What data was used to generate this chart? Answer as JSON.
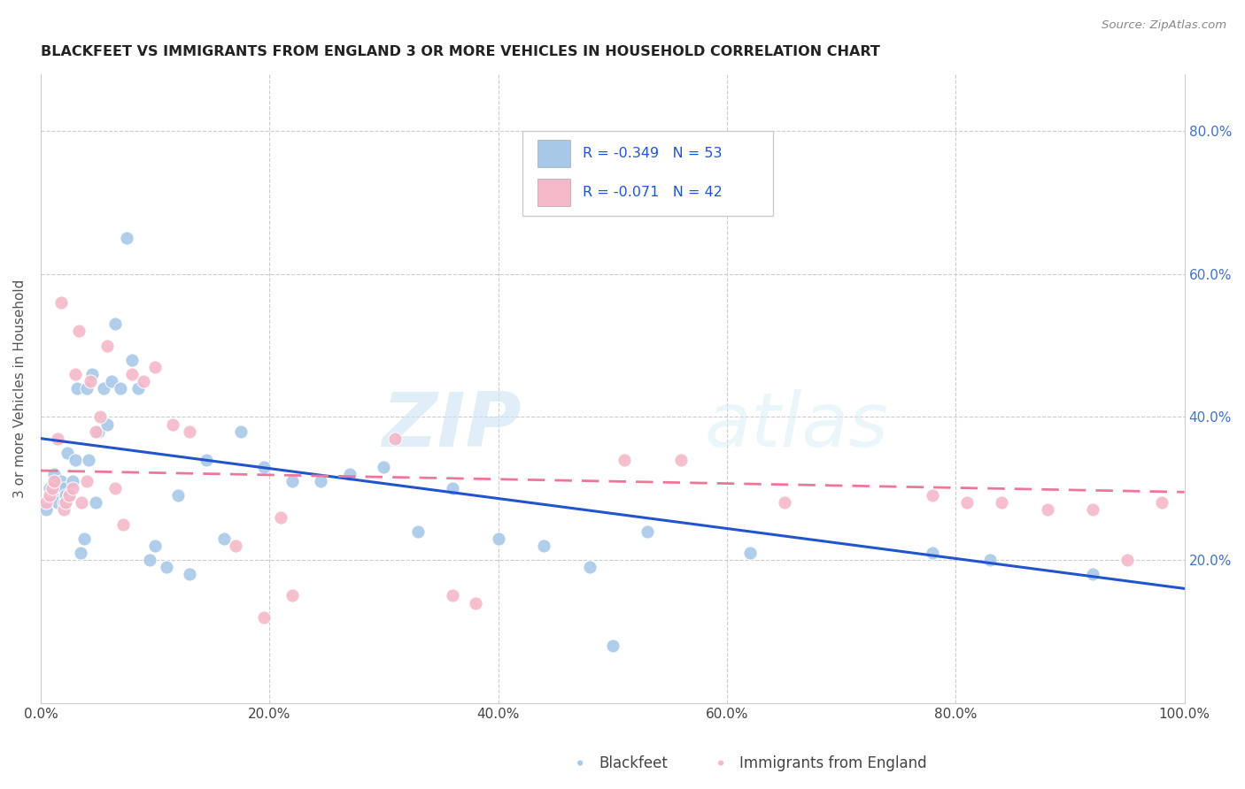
{
  "title": "BLACKFEET VS IMMIGRANTS FROM ENGLAND 3 OR MORE VEHICLES IN HOUSEHOLD CORRELATION CHART",
  "source": "Source: ZipAtlas.com",
  "ylabel": "3 or more Vehicles in Household",
  "legend_label1": "Blackfeet",
  "legend_label2": "Immigrants from England",
  "legend_r1": "R = -0.349",
  "legend_n1": "N = 53",
  "legend_r2": "R = -0.071",
  "legend_n2": "N = 42",
  "color_blue": "#a8c8e8",
  "color_pink": "#f4b8c8",
  "line_blue": "#2255cc",
  "line_pink": "#ee7799",
  "watermark_zip": "ZIP",
  "watermark_atlas": "atlas",
  "blue_x": [
    0.005,
    0.008,
    0.01,
    0.012,
    0.015,
    0.018,
    0.02,
    0.02,
    0.022,
    0.023,
    0.025,
    0.028,
    0.03,
    0.032,
    0.035,
    0.038,
    0.04,
    0.042,
    0.045,
    0.048,
    0.05,
    0.055,
    0.058,
    0.062,
    0.065,
    0.07,
    0.075,
    0.08,
    0.085,
    0.095,
    0.1,
    0.11,
    0.12,
    0.13,
    0.145,
    0.16,
    0.175,
    0.195,
    0.22,
    0.245,
    0.27,
    0.3,
    0.33,
    0.36,
    0.4,
    0.44,
    0.48,
    0.5,
    0.53,
    0.62,
    0.78,
    0.83,
    0.92
  ],
  "blue_y": [
    0.27,
    0.3,
    0.29,
    0.32,
    0.28,
    0.31,
    0.28,
    0.3,
    0.29,
    0.35,
    0.29,
    0.31,
    0.34,
    0.44,
    0.21,
    0.23,
    0.44,
    0.34,
    0.46,
    0.28,
    0.38,
    0.44,
    0.39,
    0.45,
    0.53,
    0.44,
    0.65,
    0.48,
    0.44,
    0.2,
    0.22,
    0.19,
    0.29,
    0.18,
    0.34,
    0.23,
    0.38,
    0.33,
    0.31,
    0.31,
    0.32,
    0.33,
    0.24,
    0.3,
    0.23,
    0.22,
    0.19,
    0.08,
    0.24,
    0.21,
    0.21,
    0.2,
    0.18
  ],
  "pink_x": [
    0.005,
    0.008,
    0.01,
    0.012,
    0.015,
    0.018,
    0.02,
    0.022,
    0.025,
    0.028,
    0.03,
    0.033,
    0.036,
    0.04,
    0.043,
    0.048,
    0.052,
    0.058,
    0.065,
    0.072,
    0.08,
    0.09,
    0.1,
    0.115,
    0.13,
    0.17,
    0.195,
    0.21,
    0.22,
    0.31,
    0.36,
    0.51,
    0.65,
    0.78,
    0.81,
    0.84,
    0.88,
    0.92,
    0.95,
    0.98,
    0.56,
    0.38
  ],
  "pink_y": [
    0.28,
    0.29,
    0.3,
    0.31,
    0.37,
    0.56,
    0.27,
    0.28,
    0.29,
    0.3,
    0.46,
    0.52,
    0.28,
    0.31,
    0.45,
    0.38,
    0.4,
    0.5,
    0.3,
    0.25,
    0.46,
    0.45,
    0.47,
    0.39,
    0.38,
    0.22,
    0.12,
    0.26,
    0.15,
    0.37,
    0.15,
    0.34,
    0.28,
    0.29,
    0.28,
    0.28,
    0.27,
    0.27,
    0.2,
    0.28,
    0.34,
    0.14
  ],
  "xlim": [
    0.0,
    1.0
  ],
  "ylim": [
    0.0,
    0.88
  ],
  "blue_line_x0": 0.0,
  "blue_line_x1": 1.0,
  "blue_line_y0": 0.37,
  "blue_line_y1": 0.16,
  "pink_line_x0": 0.0,
  "pink_line_x1": 1.0,
  "pink_line_y0": 0.325,
  "pink_line_y1": 0.295,
  "xtick_vals": [
    0.0,
    0.2,
    0.4,
    0.6,
    0.8,
    1.0
  ],
  "xtick_labels": [
    "0.0%",
    "20.0%",
    "40.0%",
    "60.0%",
    "80.0%",
    "100.0%"
  ],
  "ytick_right_vals": [
    0.2,
    0.4,
    0.6,
    0.8
  ],
  "ytick_right_labels": [
    "20.0%",
    "40.0%",
    "60.0%",
    "80.0%"
  ]
}
